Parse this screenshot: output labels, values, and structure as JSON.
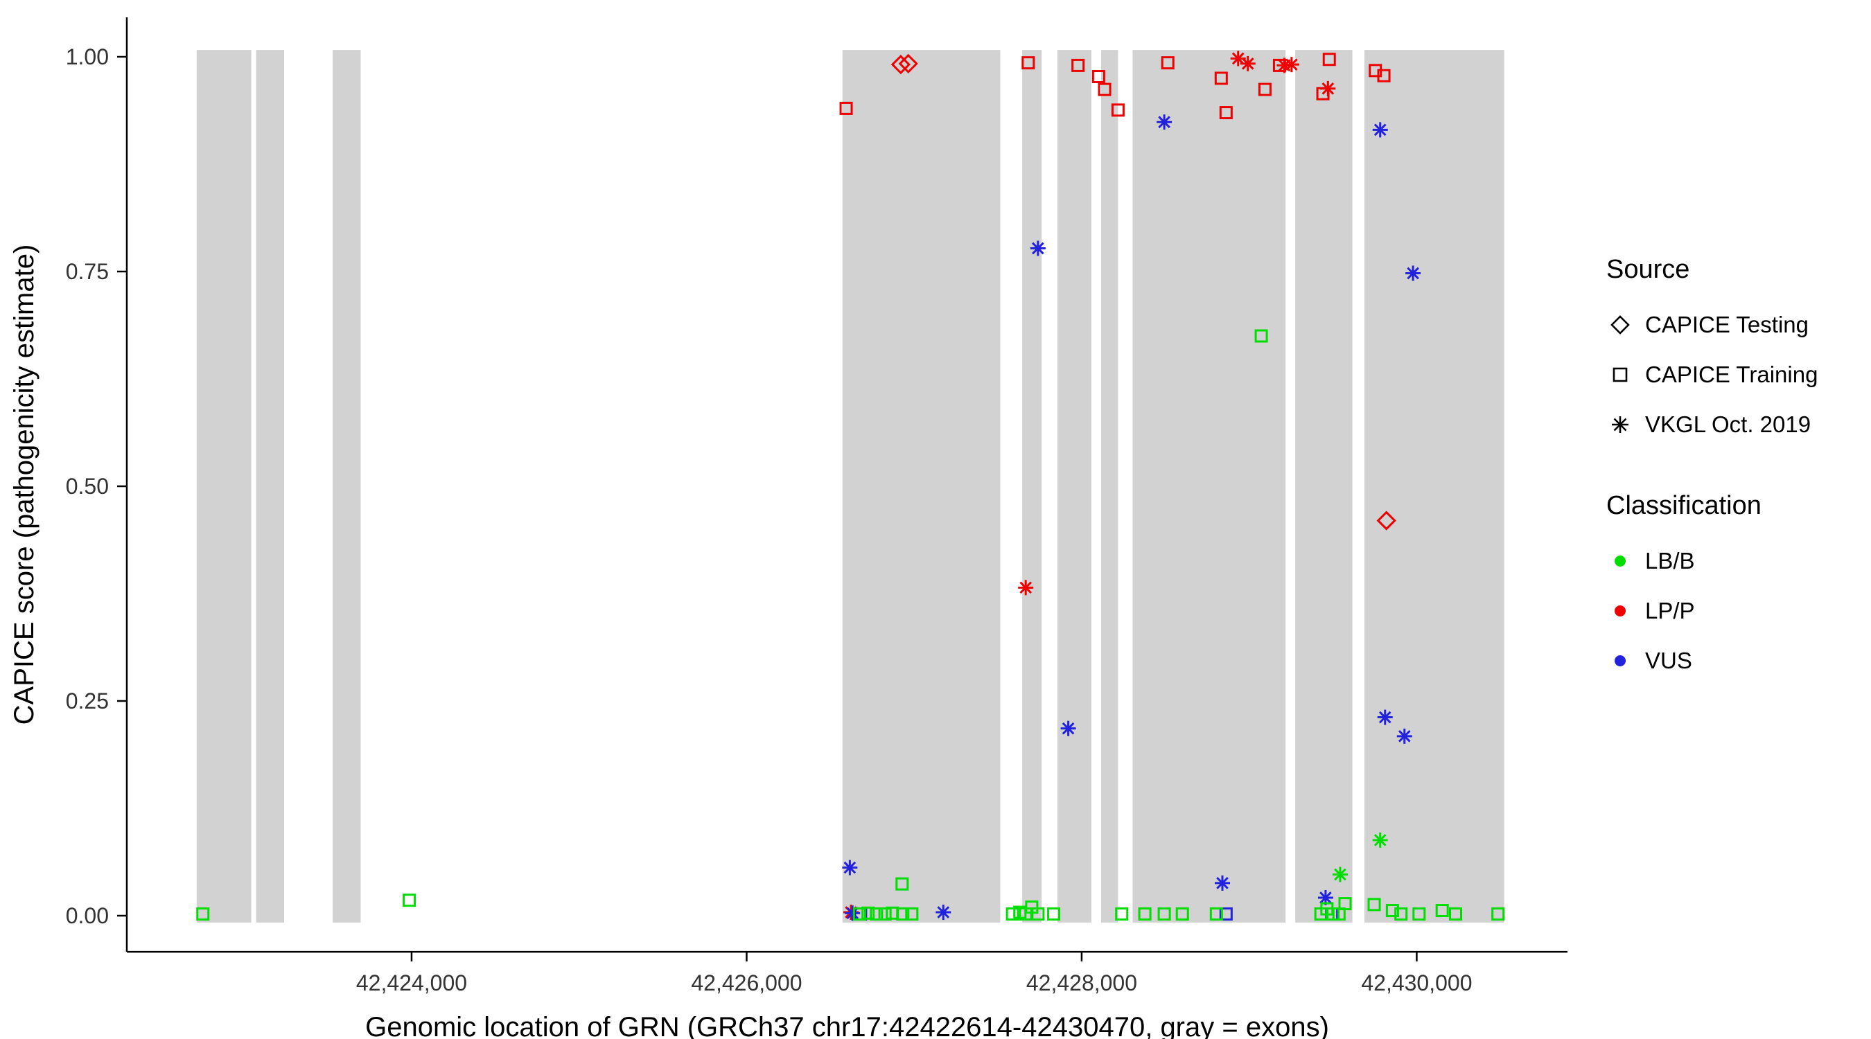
{
  "legend": {
    "source": {
      "title": "Source",
      "items": [
        {
          "label": "CAPICE Testing",
          "shape": "diamond"
        },
        {
          "label": "CAPICE Training",
          "shape": "square"
        },
        {
          "label": "VKGL Oct. 2019",
          "shape": "asterisk"
        }
      ]
    },
    "classification": {
      "title": "Classification",
      "items": [
        {
          "label": "LB/B",
          "color": "#00DD00"
        },
        {
          "label": "LP/P",
          "color": "#EE0000"
        },
        {
          "label": "VUS",
          "color": "#2222DD"
        }
      ]
    }
  },
  "chart_data": {
    "type": "scatter",
    "title": "",
    "xlabel": "Genomic location of GRN (GRCh37 chr17:42422614-42430470, gray = exons)",
    "ylabel": "CAPICE score (pathogenicity estimate)",
    "xlim": [
      42422300,
      42430900
    ],
    "ylim": [
      -0.042,
      1.046
    ],
    "grid": false,
    "legend_position": "right",
    "x_ticks": [
      {
        "value": 42424000,
        "label": "42,424,000"
      },
      {
        "value": 42426000,
        "label": "42,426,000"
      },
      {
        "value": 42428000,
        "label": "42,428,000"
      },
      {
        "value": 42430000,
        "label": "42,430,000"
      }
    ],
    "y_ticks": [
      {
        "value": 0.0,
        "label": "0.00"
      },
      {
        "value": 0.25,
        "label": "0.25"
      },
      {
        "value": 0.5,
        "label": "0.50"
      },
      {
        "value": 0.75,
        "label": "0.75"
      },
      {
        "value": 1.0,
        "label": "1.00"
      }
    ],
    "colors": {
      "LB/B": "#00DD00",
      "LP/P": "#EE0000",
      "VUS": "#2222DD",
      "exon": "#D2D2D2"
    },
    "shapes": {
      "CAPICE Testing": "diamond",
      "CAPICE Training": "square",
      "VKGL Oct. 2019": "asterisk"
    },
    "exons": [
      [
        42422717,
        42423043
      ],
      [
        42423072,
        42423239
      ],
      [
        42423529,
        42423696
      ],
      [
        42426572,
        42427514
      ],
      [
        42427645,
        42427761
      ],
      [
        42427855,
        42428058
      ],
      [
        42428116,
        42428217
      ],
      [
        42428304,
        42429217
      ],
      [
        42429275,
        42429616
      ],
      [
        42429688,
        42430522
      ]
    ],
    "points": [
      {
        "x": 42426594,
        "y": 0.94,
        "source": "CAPICE Training",
        "cls": "LP/P"
      },
      {
        "x": 42427681,
        "y": 0.993,
        "source": "CAPICE Training",
        "cls": "LP/P"
      },
      {
        "x": 42427978,
        "y": 0.99,
        "source": "CAPICE Training",
        "cls": "LP/P"
      },
      {
        "x": 42428101,
        "y": 0.977,
        "source": "CAPICE Training",
        "cls": "LP/P"
      },
      {
        "x": 42428137,
        "y": 0.962,
        "source": "CAPICE Training",
        "cls": "LP/P"
      },
      {
        "x": 42428217,
        "y": 0.938,
        "source": "CAPICE Training",
        "cls": "LP/P"
      },
      {
        "x": 42428514,
        "y": 0.993,
        "source": "CAPICE Training",
        "cls": "LP/P"
      },
      {
        "x": 42428833,
        "y": 0.975,
        "source": "CAPICE Training",
        "cls": "LP/P"
      },
      {
        "x": 42428862,
        "y": 0.935,
        "source": "CAPICE Training",
        "cls": "LP/P"
      },
      {
        "x": 42429094,
        "y": 0.962,
        "source": "CAPICE Training",
        "cls": "LP/P"
      },
      {
        "x": 42429181,
        "y": 0.99,
        "source": "CAPICE Training",
        "cls": "LP/P"
      },
      {
        "x": 42429440,
        "y": 0.957,
        "source": "CAPICE Training",
        "cls": "LP/P"
      },
      {
        "x": 42429478,
        "y": 0.997,
        "source": "CAPICE Training",
        "cls": "LP/P"
      },
      {
        "x": 42429753,
        "y": 0.984,
        "source": "CAPICE Training",
        "cls": "LP/P"
      },
      {
        "x": 42429804,
        "y": 0.978,
        "source": "CAPICE Training",
        "cls": "LP/P"
      },
      {
        "x": 42426920,
        "y": 0.991,
        "source": "CAPICE Testing",
        "cls": "LP/P"
      },
      {
        "x": 42426965,
        "y": 0.992,
        "source": "CAPICE Testing",
        "cls": "LP/P"
      },
      {
        "x": 42429819,
        "y": 0.46,
        "source": "CAPICE Testing",
        "cls": "LP/P"
      },
      {
        "x": 42427666,
        "y": 0.382,
        "source": "VKGL Oct. 2019",
        "cls": "LP/P"
      },
      {
        "x": 42426623,
        "y": 0.004,
        "source": "VKGL Oct. 2019",
        "cls": "LP/P"
      },
      {
        "x": 42428934,
        "y": 0.998,
        "source": "VKGL Oct. 2019",
        "cls": "LP/P"
      },
      {
        "x": 42428992,
        "y": 0.992,
        "source": "VKGL Oct. 2019",
        "cls": "LP/P"
      },
      {
        "x": 42429210,
        "y": 0.99,
        "source": "VKGL Oct. 2019",
        "cls": "LP/P"
      },
      {
        "x": 42429253,
        "y": 0.991,
        "source": "VKGL Oct. 2019",
        "cls": "LP/P"
      },
      {
        "x": 42429470,
        "y": 0.963,
        "source": "VKGL Oct. 2019",
        "cls": "LP/P"
      },
      {
        "x": 42426616,
        "y": 0.056,
        "source": "VKGL Oct. 2019",
        "cls": "VUS"
      },
      {
        "x": 42426632,
        "y": 0.003,
        "source": "VKGL Oct. 2019",
        "cls": "VUS"
      },
      {
        "x": 42427174,
        "y": 0.004,
        "source": "VKGL Oct. 2019",
        "cls": "VUS"
      },
      {
        "x": 42427739,
        "y": 0.777,
        "source": "VKGL Oct. 2019",
        "cls": "VUS"
      },
      {
        "x": 42427920,
        "y": 0.218,
        "source": "VKGL Oct. 2019",
        "cls": "VUS"
      },
      {
        "x": 42428493,
        "y": 0.924,
        "source": "VKGL Oct. 2019",
        "cls": "VUS"
      },
      {
        "x": 42428840,
        "y": 0.038,
        "source": "VKGL Oct. 2019",
        "cls": "VUS"
      },
      {
        "x": 42429456,
        "y": 0.021,
        "source": "VKGL Oct. 2019",
        "cls": "VUS"
      },
      {
        "x": 42429782,
        "y": 0.915,
        "source": "VKGL Oct. 2019",
        "cls": "VUS"
      },
      {
        "x": 42429811,
        "y": 0.231,
        "source": "VKGL Oct. 2019",
        "cls": "VUS"
      },
      {
        "x": 42429927,
        "y": 0.209,
        "source": "VKGL Oct. 2019",
        "cls": "VUS"
      },
      {
        "x": 42429978,
        "y": 0.748,
        "source": "VKGL Oct. 2019",
        "cls": "VUS"
      },
      {
        "x": 42426680,
        "y": 0.002,
        "source": "CAPICE Training",
        "cls": "VUS"
      },
      {
        "x": 42428862,
        "y": 0.002,
        "source": "CAPICE Training",
        "cls": "VUS"
      },
      {
        "x": 42429492,
        "y": 0.002,
        "source": "CAPICE Training",
        "cls": "VUS"
      },
      {
        "x": 42422754,
        "y": 0.002,
        "source": "CAPICE Training",
        "cls": "LB/B"
      },
      {
        "x": 42423986,
        "y": 0.018,
        "source": "CAPICE Training",
        "cls": "LB/B"
      },
      {
        "x": 42426674,
        "y": 0.002,
        "source": "CAPICE Training",
        "cls": "LB/B"
      },
      {
        "x": 42426725,
        "y": 0.003,
        "source": "CAPICE Training",
        "cls": "LB/B"
      },
      {
        "x": 42426775,
        "y": 0.002,
        "source": "CAPICE Training",
        "cls": "LB/B"
      },
      {
        "x": 42426826,
        "y": 0.002,
        "source": "CAPICE Training",
        "cls": "LB/B"
      },
      {
        "x": 42426870,
        "y": 0.003,
        "source": "CAPICE Training",
        "cls": "LB/B"
      },
      {
        "x": 42426928,
        "y": 0.037,
        "source": "CAPICE Training",
        "cls": "LB/B"
      },
      {
        "x": 42426932,
        "y": 0.002,
        "source": "CAPICE Training",
        "cls": "LB/B"
      },
      {
        "x": 42426986,
        "y": 0.002,
        "source": "CAPICE Training",
        "cls": "LB/B"
      },
      {
        "x": 42427587,
        "y": 0.002,
        "source": "CAPICE Training",
        "cls": "LB/B"
      },
      {
        "x": 42427631,
        "y": 0.004,
        "source": "CAPICE Training",
        "cls": "LB/B"
      },
      {
        "x": 42427666,
        "y": 0.002,
        "source": "CAPICE Training",
        "cls": "LB/B"
      },
      {
        "x": 42427702,
        "y": 0.01,
        "source": "CAPICE Training",
        "cls": "LB/B"
      },
      {
        "x": 42427739,
        "y": 0.002,
        "source": "CAPICE Training",
        "cls": "LB/B"
      },
      {
        "x": 42427833,
        "y": 0.002,
        "source": "CAPICE Training",
        "cls": "LB/B"
      },
      {
        "x": 42428239,
        "y": 0.002,
        "source": "CAPICE Training",
        "cls": "LB/B"
      },
      {
        "x": 42428377,
        "y": 0.002,
        "source": "CAPICE Training",
        "cls": "LB/B"
      },
      {
        "x": 42428493,
        "y": 0.002,
        "source": "CAPICE Training",
        "cls": "LB/B"
      },
      {
        "x": 42428601,
        "y": 0.002,
        "source": "CAPICE Training",
        "cls": "LB/B"
      },
      {
        "x": 42428804,
        "y": 0.002,
        "source": "CAPICE Training",
        "cls": "LB/B"
      },
      {
        "x": 42429072,
        "y": 0.675,
        "source": "CAPICE Training",
        "cls": "LB/B"
      },
      {
        "x": 42429428,
        "y": 0.002,
        "source": "CAPICE Training",
        "cls": "LB/B"
      },
      {
        "x": 42429464,
        "y": 0.008,
        "source": "CAPICE Training",
        "cls": "LB/B"
      },
      {
        "x": 42429500,
        "y": 0.002,
        "source": "CAPICE Training",
        "cls": "LB/B"
      },
      {
        "x": 42429536,
        "y": 0.002,
        "source": "CAPICE Training",
        "cls": "LB/B"
      },
      {
        "x": 42429572,
        "y": 0.014,
        "source": "CAPICE Training",
        "cls": "LB/B"
      },
      {
        "x": 42429746,
        "y": 0.013,
        "source": "CAPICE Training",
        "cls": "LB/B"
      },
      {
        "x": 42429855,
        "y": 0.006,
        "source": "CAPICE Training",
        "cls": "LB/B"
      },
      {
        "x": 42429906,
        "y": 0.002,
        "source": "CAPICE Training",
        "cls": "LB/B"
      },
      {
        "x": 42430014,
        "y": 0.002,
        "source": "CAPICE Training",
        "cls": "LB/B"
      },
      {
        "x": 42430152,
        "y": 0.006,
        "source": "CAPICE Training",
        "cls": "LB/B"
      },
      {
        "x": 42430232,
        "y": 0.002,
        "source": "CAPICE Training",
        "cls": "LB/B"
      },
      {
        "x": 42430485,
        "y": 0.002,
        "source": "CAPICE Training",
        "cls": "LB/B"
      },
      {
        "x": 42429543,
        "y": 0.048,
        "source": "VKGL Oct. 2019",
        "cls": "LB/B"
      },
      {
        "x": 42429782,
        "y": 0.088,
        "source": "VKGL Oct. 2019",
        "cls": "LB/B"
      }
    ]
  }
}
